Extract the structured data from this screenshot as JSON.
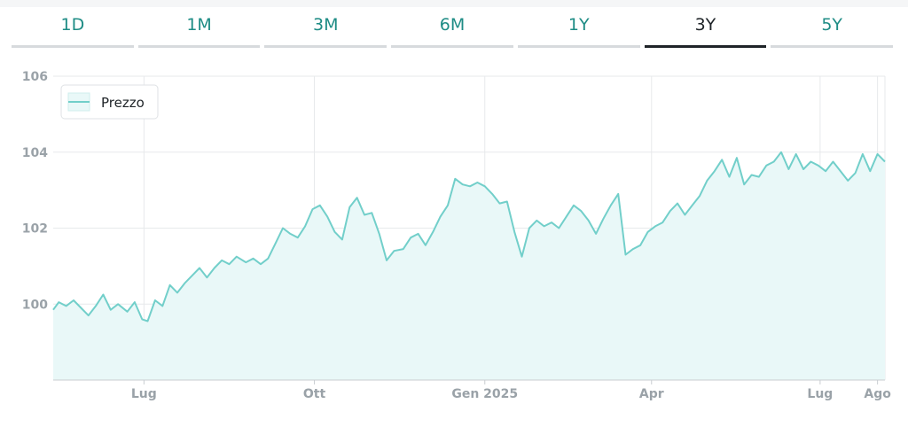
{
  "range_tabs": {
    "items": [
      {
        "label": "1D"
      },
      {
        "label": "1M"
      },
      {
        "label": "3M"
      },
      {
        "label": "6M"
      },
      {
        "label": "1Y"
      },
      {
        "label": "3Y"
      },
      {
        "label": "5Y"
      }
    ],
    "active_index": 5
  },
  "colors": {
    "accent": "#1e8c85",
    "line": "#72cfca",
    "fill": "#e9f8f8",
    "grid": "#e7e9eb",
    "axis_text": "#9aa2a8"
  },
  "chart_data": {
    "type": "area",
    "title": "",
    "xlabel": "",
    "ylabel": "",
    "legend": {
      "position": "top-left",
      "entries": [
        "Prezzo"
      ]
    },
    "grid": true,
    "ylim": [
      98,
      106
    ],
    "y_ticks": [
      100,
      102,
      104,
      106
    ],
    "xlim": [
      "2024-05-13",
      "2025-08-05"
    ],
    "x_ticks": [
      {
        "date": "2024-07-01",
        "label": "Lug"
      },
      {
        "date": "2024-10-01",
        "label": "Ott"
      },
      {
        "date": "2025-01-01",
        "label": "Gen 2025"
      },
      {
        "date": "2025-04-01",
        "label": "Apr"
      },
      {
        "date": "2025-07-01",
        "label": "Lug"
      },
      {
        "date": "2025-08-01",
        "label": "Ago"
      }
    ],
    "series": [
      {
        "name": "Prezzo",
        "points": [
          [
            "2024-05-13",
            99.85
          ],
          [
            "2024-05-16",
            100.05
          ],
          [
            "2024-05-20",
            99.95
          ],
          [
            "2024-05-24",
            100.1
          ],
          [
            "2024-05-28",
            99.9
          ],
          [
            "2024-06-01",
            99.7
          ],
          [
            "2024-06-05",
            99.95
          ],
          [
            "2024-06-09",
            100.25
          ],
          [
            "2024-06-13",
            99.85
          ],
          [
            "2024-06-17",
            100.0
          ],
          [
            "2024-06-22",
            99.8
          ],
          [
            "2024-06-26",
            100.05
          ],
          [
            "2024-06-30",
            99.6
          ],
          [
            "2024-07-03",
            99.55
          ],
          [
            "2024-07-07",
            100.1
          ],
          [
            "2024-07-11",
            99.95
          ],
          [
            "2024-07-15",
            100.5
          ],
          [
            "2024-07-19",
            100.3
          ],
          [
            "2024-07-23",
            100.55
          ],
          [
            "2024-07-27",
            100.75
          ],
          [
            "2024-07-31",
            100.95
          ],
          [
            "2024-08-04",
            100.7
          ],
          [
            "2024-08-08",
            100.95
          ],
          [
            "2024-08-12",
            101.15
          ],
          [
            "2024-08-16",
            101.05
          ],
          [
            "2024-08-20",
            101.25
          ],
          [
            "2024-08-25",
            101.1
          ],
          [
            "2024-08-29",
            101.2
          ],
          [
            "2024-09-02",
            101.05
          ],
          [
            "2024-09-06",
            101.2
          ],
          [
            "2024-09-10",
            101.6
          ],
          [
            "2024-09-14",
            102.0
          ],
          [
            "2024-09-18",
            101.85
          ],
          [
            "2024-09-22",
            101.75
          ],
          [
            "2024-09-26",
            102.05
          ],
          [
            "2024-09-30",
            102.5
          ],
          [
            "2024-10-04",
            102.6
          ],
          [
            "2024-10-08",
            102.3
          ],
          [
            "2024-10-12",
            101.9
          ],
          [
            "2024-10-16",
            101.7
          ],
          [
            "2024-10-20",
            102.55
          ],
          [
            "2024-10-24",
            102.8
          ],
          [
            "2024-10-28",
            102.35
          ],
          [
            "2024-11-01",
            102.4
          ],
          [
            "2024-11-05",
            101.85
          ],
          [
            "2024-11-09",
            101.15
          ],
          [
            "2024-11-13",
            101.4
          ],
          [
            "2024-11-18",
            101.45
          ],
          [
            "2024-11-22",
            101.75
          ],
          [
            "2024-11-26",
            101.85
          ],
          [
            "2024-11-30",
            101.55
          ],
          [
            "2024-12-04",
            101.9
          ],
          [
            "2024-12-08",
            102.3
          ],
          [
            "2024-12-12",
            102.6
          ],
          [
            "2024-12-16",
            103.3
          ],
          [
            "2024-12-20",
            103.15
          ],
          [
            "2024-12-24",
            103.1
          ],
          [
            "2024-12-28",
            103.2
          ],
          [
            "2025-01-01",
            103.1
          ],
          [
            "2025-01-05",
            102.9
          ],
          [
            "2025-01-09",
            102.65
          ],
          [
            "2025-01-13",
            102.7
          ],
          [
            "2025-01-17",
            101.9
          ],
          [
            "2025-01-21",
            101.25
          ],
          [
            "2025-01-25",
            102.0
          ],
          [
            "2025-01-29",
            102.2
          ],
          [
            "2025-02-02",
            102.05
          ],
          [
            "2025-02-06",
            102.15
          ],
          [
            "2025-02-10",
            102.0
          ],
          [
            "2025-02-14",
            102.3
          ],
          [
            "2025-02-18",
            102.6
          ],
          [
            "2025-02-22",
            102.45
          ],
          [
            "2025-02-26",
            102.2
          ],
          [
            "2025-03-02",
            101.85
          ],
          [
            "2025-03-06",
            102.25
          ],
          [
            "2025-03-10",
            102.6
          ],
          [
            "2025-03-14",
            102.9
          ],
          [
            "2025-03-18",
            101.3
          ],
          [
            "2025-03-22",
            101.45
          ],
          [
            "2025-03-26",
            101.55
          ],
          [
            "2025-03-30",
            101.9
          ],
          [
            "2025-04-03",
            102.05
          ],
          [
            "2025-04-07",
            102.15
          ],
          [
            "2025-04-11",
            102.45
          ],
          [
            "2025-04-15",
            102.65
          ],
          [
            "2025-04-19",
            102.35
          ],
          [
            "2025-04-23",
            102.6
          ],
          [
            "2025-04-27",
            102.85
          ],
          [
            "2025-05-01",
            103.25
          ],
          [
            "2025-05-05",
            103.5
          ],
          [
            "2025-05-09",
            103.8
          ],
          [
            "2025-05-13",
            103.35
          ],
          [
            "2025-05-17",
            103.85
          ],
          [
            "2025-05-21",
            103.15
          ],
          [
            "2025-05-25",
            103.4
          ],
          [
            "2025-05-29",
            103.35
          ],
          [
            "2025-06-02",
            103.65
          ],
          [
            "2025-06-06",
            103.75
          ],
          [
            "2025-06-10",
            104.0
          ],
          [
            "2025-06-14",
            103.55
          ],
          [
            "2025-06-18",
            103.95
          ],
          [
            "2025-06-22",
            103.55
          ],
          [
            "2025-06-26",
            103.75
          ],
          [
            "2025-06-30",
            103.65
          ],
          [
            "2025-07-04",
            103.5
          ],
          [
            "2025-07-08",
            103.75
          ],
          [
            "2025-07-12",
            103.5
          ],
          [
            "2025-07-16",
            103.25
          ],
          [
            "2025-07-20",
            103.45
          ],
          [
            "2025-07-24",
            103.95
          ],
          [
            "2025-07-28",
            103.5
          ],
          [
            "2025-08-01",
            103.95
          ],
          [
            "2025-08-05",
            103.75
          ]
        ]
      }
    ]
  }
}
